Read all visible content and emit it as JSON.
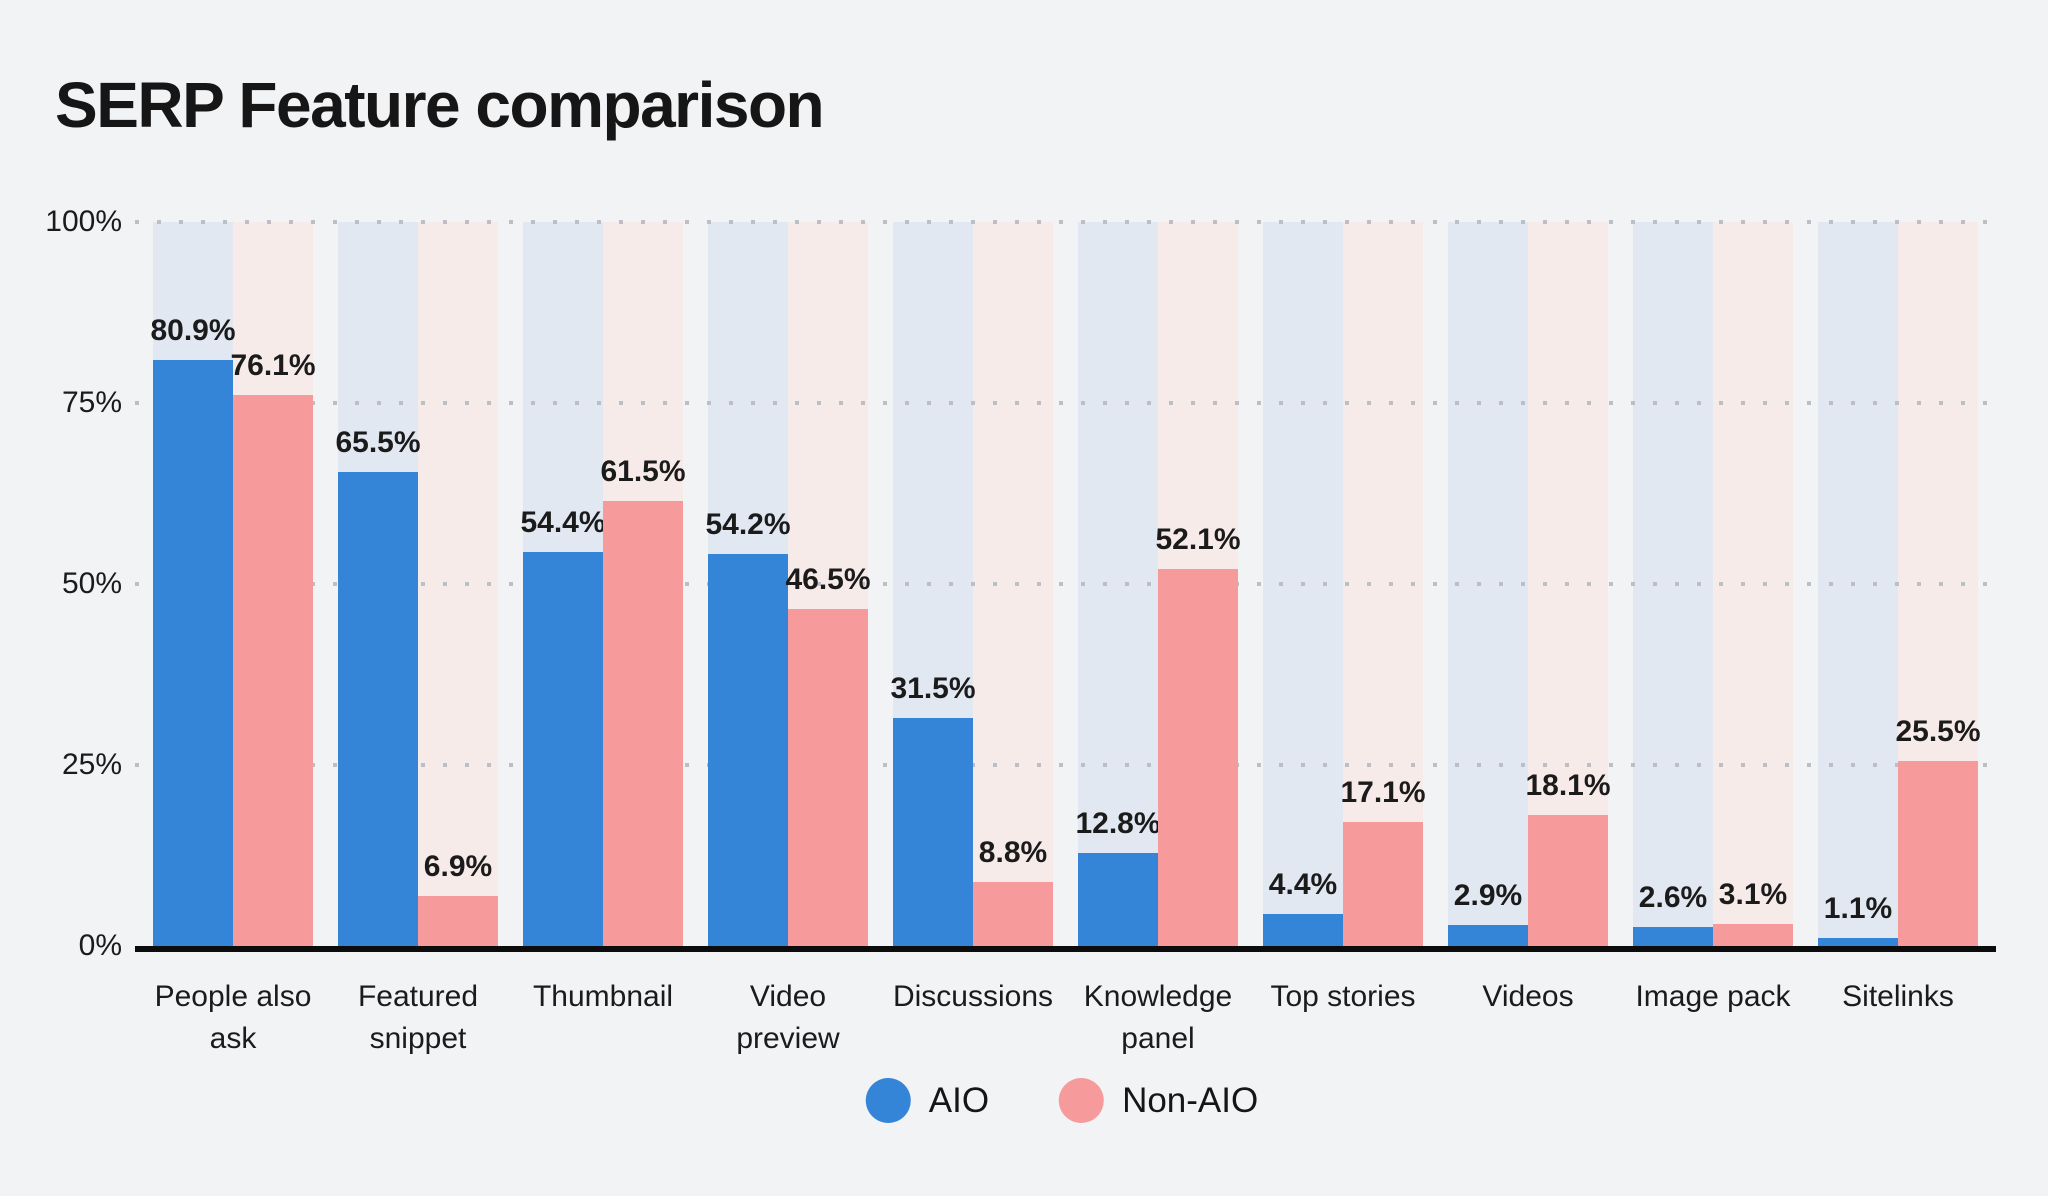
{
  "title": "SERP Feature comparison",
  "y_axis": {
    "tick_labels": [
      "0%",
      "25%",
      "50%",
      "75%",
      "100%"
    ]
  },
  "legend": [
    {
      "label": "AIO",
      "color": "#3484d7"
    },
    {
      "label": "Non-AIO",
      "color": "#f69a9b"
    }
  ],
  "colors": {
    "page_background": "#f2f3f5",
    "aio_bar": "#3484d7",
    "non_aio_bar": "#f69a9b",
    "aio_column_tint": "#e1e8f2",
    "non_aio_column_tint": "#f7ebea",
    "grid_dot": "#bcbfc6",
    "axis_line": "#0c0c0c",
    "text": "#1b1b1b"
  },
  "chart_data": {
    "type": "bar",
    "title": "SERP Feature comparison",
    "categories": [
      "People also ask",
      "Featured snippet",
      "Thumbnail",
      "Video preview",
      "Discussions",
      "Knowledge panel",
      "Top stories",
      "Videos",
      "Image pack",
      "Sitelinks"
    ],
    "series": [
      {
        "name": "AIO",
        "color": "#3484d7",
        "column_tint": "#e1e8f2",
        "values": [
          80.9,
          65.5,
          54.4,
          54.2,
          31.5,
          12.8,
          4.4,
          2.9,
          2.6,
          1.1
        ]
      },
      {
        "name": "Non-AIO",
        "color": "#f69a9b",
        "column_tint": "#f7ebea",
        "values": [
          76.1,
          6.9,
          61.5,
          46.5,
          8.8,
          52.1,
          17.1,
          18.1,
          3.1,
          25.5
        ]
      }
    ],
    "value_suffix": "%",
    "value_labels_shown": true,
    "xlabel": "",
    "ylabel": "",
    "ylim": [
      0,
      100
    ],
    "yticks": [
      0,
      25,
      50,
      75,
      100
    ],
    "grid": "horizontal-dotted",
    "legend_position": "bottom-center"
  }
}
